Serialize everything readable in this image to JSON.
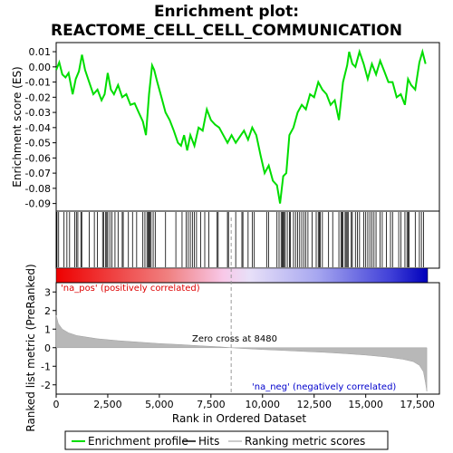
{
  "chart_data": {
    "type": "line",
    "title_line1": "Enrichment plot:",
    "title_line2": "REACTOME_CELL_CELL_COMMUNICATION",
    "es_panel": {
      "ylabel": "Enrichment score (ES)",
      "ylim": [
        -0.095,
        0.016
      ],
      "yticks": [
        0.01,
        0.0,
        -0.01,
        -0.02,
        -0.03,
        -0.04,
        -0.05,
        -0.06,
        -0.07,
        -0.08,
        -0.09
      ],
      "ytick_labels": [
        "0.01",
        "0.00",
        "-0.01",
        "-0.02",
        "-0.03",
        "-0.04",
        "-0.05",
        "-0.06",
        "-0.07",
        "-0.08",
        "-0.09"
      ],
      "xlim": [
        0,
        18000
      ],
      "line_color": "#00dd00",
      "profile": [
        [
          0,
          -0.002
        ],
        [
          150,
          0.003
        ],
        [
          300,
          -0.005
        ],
        [
          450,
          -0.007
        ],
        [
          600,
          -0.004
        ],
        [
          800,
          -0.018
        ],
        [
          950,
          -0.008
        ],
        [
          1100,
          -0.003
        ],
        [
          1250,
          0.008
        ],
        [
          1400,
          -0.002
        ],
        [
          1600,
          -0.01
        ],
        [
          1800,
          -0.018
        ],
        [
          2000,
          -0.015
        ],
        [
          2200,
          -0.022
        ],
        [
          2350,
          -0.018
        ],
        [
          2500,
          -0.004
        ],
        [
          2650,
          -0.015
        ],
        [
          2800,
          -0.018
        ],
        [
          3000,
          -0.012
        ],
        [
          3200,
          -0.02
        ],
        [
          3400,
          -0.018
        ],
        [
          3600,
          -0.025
        ],
        [
          3800,
          -0.024
        ],
        [
          4000,
          -0.03
        ],
        [
          4200,
          -0.036
        ],
        [
          4350,
          -0.045
        ],
        [
          4500,
          -0.018
        ],
        [
          4650,
          0.001
        ],
        [
          4750,
          -0.002
        ],
        [
          4900,
          -0.01
        ],
        [
          5100,
          -0.02
        ],
        [
          5300,
          -0.03
        ],
        [
          5500,
          -0.035
        ],
        [
          5700,
          -0.042
        ],
        [
          5900,
          -0.05
        ],
        [
          6050,
          -0.052
        ],
        [
          6200,
          -0.045
        ],
        [
          6350,
          -0.055
        ],
        [
          6500,
          -0.045
        ],
        [
          6700,
          -0.052
        ],
        [
          6900,
          -0.04
        ],
        [
          7100,
          -0.042
        ],
        [
          7300,
          -0.028
        ],
        [
          7500,
          -0.035
        ],
        [
          7700,
          -0.038
        ],
        [
          7900,
          -0.04
        ],
        [
          8100,
          -0.045
        ],
        [
          8300,
          -0.05
        ],
        [
          8500,
          -0.045
        ],
        [
          8700,
          -0.05
        ],
        [
          8900,
          -0.046
        ],
        [
          9100,
          -0.042
        ],
        [
          9300,
          -0.048
        ],
        [
          9500,
          -0.04
        ],
        [
          9700,
          -0.045
        ],
        [
          9900,
          -0.058
        ],
        [
          10100,
          -0.07
        ],
        [
          10300,
          -0.065
        ],
        [
          10500,
          -0.075
        ],
        [
          10700,
          -0.078
        ],
        [
          10850,
          -0.09
        ],
        [
          11000,
          -0.072
        ],
        [
          11150,
          -0.07
        ],
        [
          11300,
          -0.045
        ],
        [
          11500,
          -0.04
        ],
        [
          11700,
          -0.03
        ],
        [
          11900,
          -0.025
        ],
        [
          12100,
          -0.028
        ],
        [
          12300,
          -0.018
        ],
        [
          12500,
          -0.02
        ],
        [
          12700,
          -0.01
        ],
        [
          12900,
          -0.015
        ],
        [
          13100,
          -0.018
        ],
        [
          13300,
          -0.025
        ],
        [
          13500,
          -0.022
        ],
        [
          13700,
          -0.035
        ],
        [
          13900,
          -0.01
        ],
        [
          14100,
          0.001
        ],
        [
          14200,
          0.01
        ],
        [
          14350,
          0.002
        ],
        [
          14500,
          0.0
        ],
        [
          14700,
          0.01
        ],
        [
          14900,
          0.002
        ],
        [
          15100,
          -0.008
        ],
        [
          15300,
          0.002
        ],
        [
          15500,
          -0.005
        ],
        [
          15700,
          0.004
        ],
        [
          15900,
          -0.003
        ],
        [
          16100,
          -0.01
        ],
        [
          16300,
          -0.01
        ],
        [
          16500,
          -0.02
        ],
        [
          16700,
          -0.018
        ],
        [
          16900,
          -0.025
        ],
        [
          17050,
          -0.008
        ],
        [
          17200,
          -0.012
        ],
        [
          17400,
          -0.015
        ],
        [
          17600,
          0.003
        ],
        [
          17750,
          0.01
        ],
        [
          17900,
          0.002
        ]
      ]
    },
    "hits": [
      40,
      120,
      380,
      520,
      650,
      900,
      980,
      1050,
      1200,
      1240,
      1600,
      1850,
      2000,
      2250,
      2300,
      2400,
      2450,
      2500,
      2600,
      2700,
      2850,
      3000,
      3200,
      3250,
      3500,
      3700,
      3900,
      4200,
      4300,
      4400,
      4450,
      4500,
      4550,
      4600,
      4700,
      4800,
      5300,
      5800,
      6100,
      6300,
      6400,
      6500,
      6600,
      6700,
      6800,
      7000,
      7200,
      7400,
      7800,
      7850,
      8300,
      8350,
      8700,
      9000,
      9050,
      9300,
      9500,
      9600,
      10200,
      10300,
      10700,
      10800,
      10900,
      10950,
      11000,
      11050,
      11100,
      11200,
      11300,
      11350,
      11500,
      11600,
      11700,
      11800,
      11900,
      12000,
      12100,
      12200,
      12400,
      12600,
      12700,
      12750,
      12800,
      12900,
      13200,
      13400,
      13700,
      13800,
      13850,
      13900,
      14000,
      14050,
      14100,
      14150,
      14300,
      14350,
      14500,
      14600,
      14700,
      14900,
      15000,
      15100,
      15200,
      15300,
      15400,
      15500,
      15700,
      15800,
      16000,
      16200,
      16300,
      16600,
      16700,
      16900,
      17000,
      17050,
      17100,
      17400,
      17600,
      17700,
      17800
    ],
    "metric_panel": {
      "ylabel": "Ranked list metric (PreRanked)",
      "xlabel": "Rank in Ordered Dataset",
      "ylim": [
        -2.5,
        3.5
      ],
      "yticks": [
        3,
        2,
        1,
        0,
        -1,
        -2
      ],
      "ytick_labels": [
        "3",
        "2",
        "1",
        "0",
        "-1",
        "-2"
      ],
      "xticks": [
        0,
        2500,
        5000,
        7500,
        10000,
        12500,
        15000,
        17500
      ],
      "xtick_labels": [
        "0",
        "2,500",
        "5,000",
        "7,500",
        "10,000",
        "12,500",
        "15,000",
        "17,500"
      ],
      "metric_curve": [
        [
          0,
          1.75
        ],
        [
          100,
          1.3
        ],
        [
          300,
          1.0
        ],
        [
          600,
          0.8
        ],
        [
          1000,
          0.65
        ],
        [
          2000,
          0.48
        ],
        [
          3000,
          0.38
        ],
        [
          4000,
          0.3
        ],
        [
          5000,
          0.22
        ],
        [
          6000,
          0.17
        ],
        [
          7000,
          0.1
        ],
        [
          8000,
          0.04
        ],
        [
          8480,
          0.0
        ],
        [
          9000,
          -0.04
        ],
        [
          10000,
          -0.1
        ],
        [
          11000,
          -0.15
        ],
        [
          12000,
          -0.2
        ],
        [
          13000,
          -0.25
        ],
        [
          14000,
          -0.32
        ],
        [
          15000,
          -0.4
        ],
        [
          16000,
          -0.5
        ],
        [
          16800,
          -0.62
        ],
        [
          17300,
          -0.75
        ],
        [
          17600,
          -0.95
        ],
        [
          17800,
          -1.3
        ],
        [
          17900,
          -1.9
        ],
        [
          17960,
          -2.35
        ]
      ],
      "zero_cross": 8480,
      "zero_cross_label": "Zero cross at 8480",
      "pos_label": "'na_pos' (positively correlated)",
      "neg_label": "'na_neg' (negatively correlated)",
      "pos_color": "#dd0000",
      "neg_color": "#0000cc"
    },
    "legend": [
      {
        "label": "Enrichment profile",
        "color": "#00dd00"
      },
      {
        "label": "Hits",
        "color": "#000000"
      },
      {
        "label": "Ranking metric scores",
        "color": "#bbbbbb"
      }
    ]
  }
}
